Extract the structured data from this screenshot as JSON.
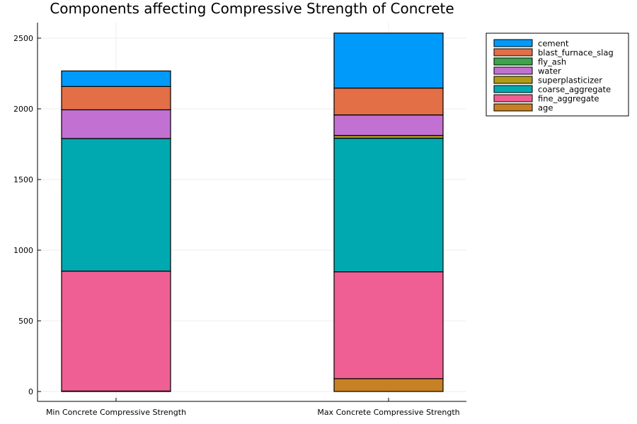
{
  "chart_data": {
    "type": "bar",
    "stacked": true,
    "title": "Components affecting Compressive Strength of Concrete",
    "xlabel": "",
    "ylabel": "",
    "categories": [
      "Min Concrete Compressive Strength",
      "Max Concrete Compressive Strength"
    ],
    "ylim": [
      -70,
      2610
    ],
    "yticks": [
      0,
      500,
      1000,
      1500,
      2000,
      2500
    ],
    "grid": true,
    "legend_position": "top-right",
    "series": [
      {
        "name": "age",
        "color": "#c68125",
        "values": [
          3,
          91
        ]
      },
      {
        "name": "fine_aggregate",
        "color": "#ef5f93",
        "values": [
          849,
          756
        ]
      },
      {
        "name": "coarse_aggregate",
        "color": "#00a9b0",
        "values": [
          938,
          945
        ]
      },
      {
        "name": "superplasticizer",
        "color": "#b19b17",
        "values": [
          0,
          20
        ]
      },
      {
        "name": "water",
        "color": "#c271d2",
        "values": [
          203,
          145
        ]
      },
      {
        "name": "fly_ash",
        "color": "#3da44d",
        "values": [
          0,
          0
        ]
      },
      {
        "name": "blast_furnace_slag",
        "color": "#e26f46",
        "values": [
          165,
          190
        ]
      },
      {
        "name": "cement",
        "color": "#009afa",
        "values": [
          110,
          389
        ]
      }
    ],
    "legend_order": [
      "cement",
      "blast_furnace_slag",
      "fly_ash",
      "water",
      "superplasticizer",
      "coarse_aggregate",
      "fine_aggregate",
      "age"
    ]
  }
}
